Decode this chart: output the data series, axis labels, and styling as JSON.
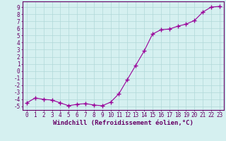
{
  "x": [
    0,
    1,
    2,
    3,
    4,
    5,
    6,
    7,
    8,
    9,
    10,
    11,
    12,
    13,
    14,
    15,
    16,
    17,
    18,
    19,
    20,
    21,
    22,
    23
  ],
  "y": [
    -4.5,
    -3.8,
    -4.0,
    -4.1,
    -4.5,
    -4.9,
    -4.7,
    -4.6,
    -4.8,
    -4.9,
    -4.4,
    -3.2,
    -1.2,
    0.8,
    2.8,
    5.2,
    5.8,
    5.9,
    6.3,
    6.6,
    7.1,
    8.3,
    9.0,
    9.1
  ],
  "line_color": "#990099",
  "marker": "+",
  "marker_size": 4,
  "xlabel": "Windchill (Refroidissement éolien,°C)",
  "xlim": [
    -0.5,
    23.5
  ],
  "ylim": [
    -5.5,
    9.8
  ],
  "yticks": [
    -5,
    -4,
    -3,
    -2,
    -1,
    0,
    1,
    2,
    3,
    4,
    5,
    6,
    7,
    8,
    9
  ],
  "xticks": [
    0,
    1,
    2,
    3,
    4,
    5,
    6,
    7,
    8,
    9,
    10,
    11,
    12,
    13,
    14,
    15,
    16,
    17,
    18,
    19,
    20,
    21,
    22,
    23
  ],
  "bg_color": "#d5f0f0",
  "grid_color": "#b0d8d8",
  "axis_color": "#660066",
  "tick_color": "#660066",
  "label_color": "#660066",
  "font_size": 5.5,
  "xlabel_font_size": 6.5
}
